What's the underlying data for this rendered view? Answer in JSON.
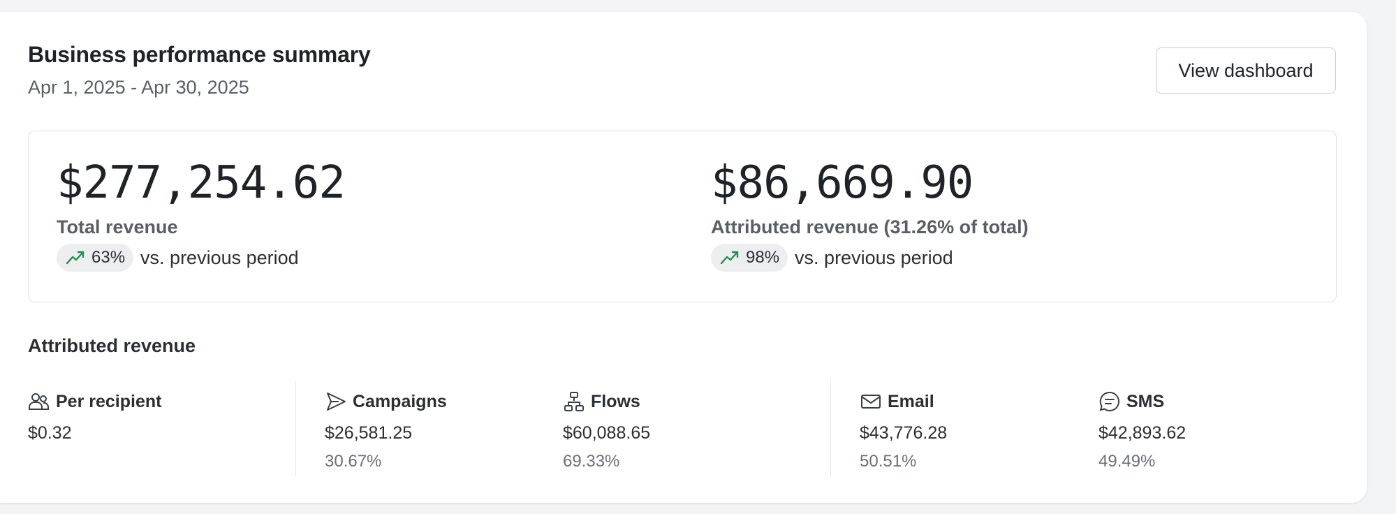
{
  "summary": {
    "title": "Business performance summary",
    "date_range": "Apr 1, 2025 - Apr 30, 2025",
    "view_button": "View dashboard"
  },
  "kpis": [
    {
      "value": "$277,254.62",
      "label": "Total revenue",
      "change": "63%",
      "change_suffix": "vs. previous period",
      "trend_icon": "trending-up-icon"
    },
    {
      "value": "$86,669.90",
      "label": "Attributed revenue (31.26% of total)",
      "change": "98%",
      "change_suffix": "vs. previous period",
      "trend_icon": "trending-up-icon"
    }
  ],
  "attributed": {
    "title": "Attributed revenue",
    "metrics": [
      {
        "icon": "users-icon",
        "label": "Per recipient",
        "value": "$0.32"
      },
      {
        "icon": "send-icon",
        "label": "Campaigns",
        "value": "$26,581.25",
        "pct": "30.67%"
      },
      {
        "icon": "flows-icon",
        "label": "Flows",
        "value": "$60,088.65",
        "pct": "69.33%"
      },
      {
        "icon": "mail-icon",
        "label": "Email",
        "value": "$43,776.28",
        "pct": "50.51%"
      },
      {
        "icon": "message-icon",
        "label": "SMS",
        "value": "$42,893.62",
        "pct": "49.49%"
      }
    ]
  },
  "colors": {
    "trend_up": "#1f8f4e",
    "text_primary": "#1f2328",
    "text_muted": "#5a5f66"
  }
}
